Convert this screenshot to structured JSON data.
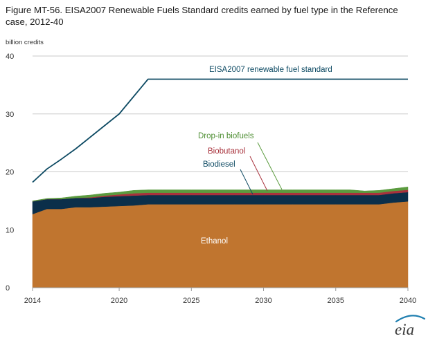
{
  "chart_data": {
    "type": "area",
    "title": "Figure MT-56. EISA2007 Renewable Fuels Standard credits earned by fuel type in the Reference case, 2012-40",
    "ylabel": "billion credits",
    "xlabel": "",
    "xlim": [
      2014,
      2040
    ],
    "ylim": [
      0,
      40
    ],
    "x_ticks": [
      2014,
      2020,
      2025,
      2030,
      2035,
      2040
    ],
    "y_ticks": [
      0,
      10,
      20,
      30,
      40
    ],
    "grid": "horizontal",
    "x": [
      2014,
      2015,
      2016,
      2017,
      2018,
      2019,
      2020,
      2021,
      2022,
      2023,
      2024,
      2025,
      2026,
      2027,
      2028,
      2029,
      2030,
      2031,
      2032,
      2033,
      2034,
      2035,
      2036,
      2037,
      2038,
      2039,
      2040
    ],
    "series": [
      {
        "name": "Ethanol",
        "kind": "area",
        "color": "#c0752f",
        "values": [
          12.7,
          13.6,
          13.6,
          13.9,
          13.9,
          14.0,
          14.1,
          14.2,
          14.4,
          14.4,
          14.4,
          14.4,
          14.4,
          14.4,
          14.4,
          14.4,
          14.4,
          14.4,
          14.4,
          14.4,
          14.4,
          14.4,
          14.4,
          14.4,
          14.4,
          14.7,
          14.9
        ]
      },
      {
        "name": "Biodiesel",
        "kind": "area",
        "color": "#0b2f4a",
        "values": [
          2.2,
          1.7,
          1.7,
          1.6,
          1.6,
          1.7,
          1.7,
          1.7,
          1.6,
          1.6,
          1.6,
          1.6,
          1.6,
          1.6,
          1.6,
          1.6,
          1.6,
          1.6,
          1.6,
          1.6,
          1.6,
          1.6,
          1.6,
          1.6,
          1.6,
          1.6,
          1.6
        ]
      },
      {
        "name": "Biobutanol",
        "kind": "area",
        "color": "#a8323c",
        "values": [
          0.0,
          0.0,
          0.0,
          0.0,
          0.1,
          0.2,
          0.3,
          0.4,
          0.4,
          0.4,
          0.4,
          0.4,
          0.4,
          0.4,
          0.4,
          0.4,
          0.4,
          0.4,
          0.4,
          0.4,
          0.4,
          0.4,
          0.4,
          0.4,
          0.4,
          0.4,
          0.4
        ]
      },
      {
        "name": "Drop-in biofuels",
        "kind": "area",
        "color": "#5b9b3f",
        "values": [
          0.1,
          0.1,
          0.2,
          0.3,
          0.4,
          0.4,
          0.4,
          0.5,
          0.5,
          0.5,
          0.5,
          0.5,
          0.5,
          0.5,
          0.5,
          0.5,
          0.5,
          0.5,
          0.5,
          0.5,
          0.5,
          0.5,
          0.5,
          0.3,
          0.4,
          0.4,
          0.5
        ]
      },
      {
        "name": "EISA2007 renewable fuel standard",
        "kind": "line",
        "color": "#0d4a63",
        "values": [
          18.2,
          20.5,
          22.2,
          24.0,
          26.0,
          28.0,
          30.0,
          33.0,
          36.0,
          36.0,
          36.0,
          36.0,
          36.0,
          36.0,
          36.0,
          36.0,
          36.0,
          36.0,
          36.0,
          36.0,
          36.0,
          36.0,
          36.0,
          36.0,
          36.0,
          36.0,
          36.0
        ]
      }
    ],
    "annotations": [
      {
        "text": "EISA2007 renewable fuel standard",
        "color": "#0d4a63"
      },
      {
        "text": "Drop-in biofuels",
        "color": "#4f8f34"
      },
      {
        "text": "Biobutanol",
        "color": "#a8323c"
      },
      {
        "text": "Biodiesel",
        "color": "#0d4a63"
      },
      {
        "text": "Ethanol",
        "color": "#ffffff"
      }
    ]
  },
  "logo": {
    "text": "eia"
  }
}
